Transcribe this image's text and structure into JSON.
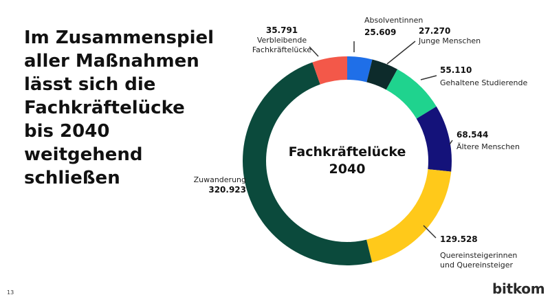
{
  "headline": [
    "Im Zusammenspiel",
    "aller Maßnahmen",
    "lässt sich die",
    "Fachkräftelücke",
    "bis 2040",
    "weitgehend",
    "schließen"
  ],
  "page_number": "13",
  "brand": "bitkom",
  "chart_data": {
    "type": "pie",
    "style": "donut",
    "center_label": [
      "Fachkräftelücke",
      "2040"
    ],
    "slices": [
      {
        "label": "Absolventinnen",
        "value": 25609,
        "value_text": "25.609",
        "color": "#1f6fe8"
      },
      {
        "label": "Junge Menschen",
        "value": 27270,
        "value_text": "27.270",
        "color": "#0d2b2b"
      },
      {
        "label": "Gehaltene Studierende",
        "value": 55110,
        "value_text": "55.110",
        "color": "#1fd38e"
      },
      {
        "label": "Ältere Menschen",
        "value": 68544,
        "value_text": "68.544",
        "color": "#14127a"
      },
      {
        "label": "Quereinsteigerinnen und Quereinsteiger",
        "value": 129528,
        "value_text": "129.528",
        "color": "#ffc91a"
      },
      {
        "label": "Zuwanderung",
        "value": 320923,
        "value_text": "320.923",
        "color": "#0b4a3c"
      },
      {
        "label": "Verbleibende Fachkräftelücke",
        "value": 35791,
        "value_text": "35.791",
        "color": "#f35849"
      }
    ]
  }
}
